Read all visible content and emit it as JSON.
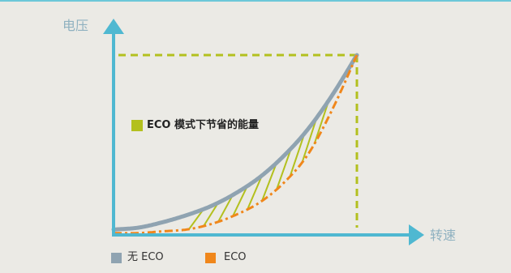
{
  "colors": {
    "background": "#ebeae5",
    "axis": "#4fb8d1",
    "axis_label": "#8fb1c0",
    "highlight": "#b3c01e"
  },
  "chart_data": {
    "type": "line",
    "xlabel": "转速",
    "ylabel": "电压",
    "xlim": [
      0,
      125
    ],
    "ylim": [
      0,
      120
    ],
    "grid": false,
    "legend": "bottom-left",
    "x": [
      0,
      10,
      20,
      30,
      40,
      50,
      60,
      70,
      80,
      90,
      100
    ],
    "series": [
      {
        "name": "无 ECO",
        "color": "#8fa3b1",
        "values": [
          3,
          4,
          7,
          11,
          16,
          23,
          32,
          44,
          59,
          78,
          100
        ]
      },
      {
        "name": "ECO",
        "color": "#f0871b",
        "values": [
          1,
          1,
          2,
          3,
          6,
          11,
          18,
          29,
          45,
          70,
          100
        ]
      }
    ],
    "reference_point": {
      "x": 100,
      "y": 100,
      "color": "#b3c01e"
    },
    "annotations": [
      {
        "text": "ECO 模式下节省的能量",
        "color": "#b3c01e"
      }
    ]
  }
}
